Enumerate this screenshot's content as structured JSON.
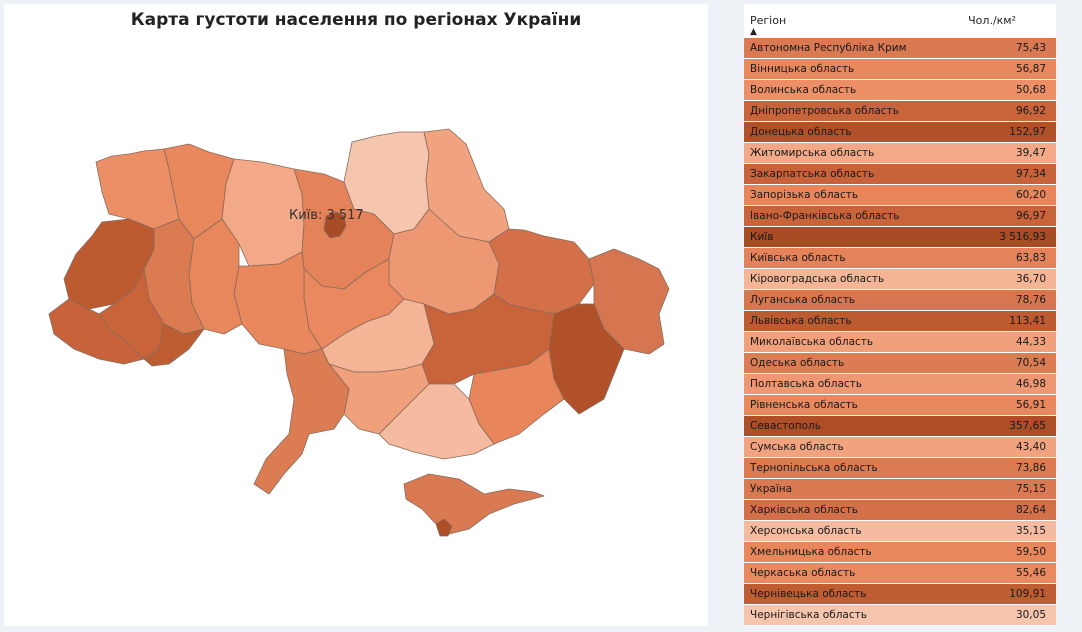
{
  "title": "Карта густоти населення по регіонах України",
  "map_label": "Київ: 3 517",
  "table": {
    "col_region": "Регіон",
    "col_value": "Чол./км²",
    "sort_glyph": "▲",
    "rows": [
      {
        "name": "Автономна Республіка Крим",
        "value": "75,43",
        "color": "#d97a52"
      },
      {
        "name": "Вінницька область",
        "value": "56,87",
        "color": "#e9875d"
      },
      {
        "name": "Волинська область",
        "value": "50,68",
        "color": "#ec8f66"
      },
      {
        "name": "Дніпропетровська область",
        "value": "96,92",
        "color": "#c8633a"
      },
      {
        "name": "Донецька область",
        "value": "152,97",
        "color": "#b05129"
      },
      {
        "name": "Житомирська область",
        "value": "39,47",
        "color": "#f3a987"
      },
      {
        "name": "Закарпатська область",
        "value": "97,34",
        "color": "#c7623a"
      },
      {
        "name": "Запорізька область",
        "value": "60,20",
        "color": "#e8855b"
      },
      {
        "name": "Івано-Франківська область",
        "value": "96,97",
        "color": "#c8633a"
      },
      {
        "name": "Київ",
        "value": "3 516,93",
        "color": "#a84c25"
      },
      {
        "name": "Київська область",
        "value": "63,83",
        "color": "#e4825a"
      },
      {
        "name": "Кіровоградська область",
        "value": "36,70",
        "color": "#f4b596"
      },
      {
        "name": "Луганська область",
        "value": "78,76",
        "color": "#d67650"
      },
      {
        "name": "Львівська область",
        "value": "113,41",
        "color": "#bc5a30"
      },
      {
        "name": "Миколаївська область",
        "value": "44,33",
        "color": "#f1a07c"
      },
      {
        "name": "Одеська область",
        "value": "70,54",
        "color": "#dc7c53"
      },
      {
        "name": "Полтавська область",
        "value": "46,98",
        "color": "#ee9873"
      },
      {
        "name": "Рівненська область",
        "value": "56,91",
        "color": "#e9875d"
      },
      {
        "name": "Севастополь",
        "value": "357,65",
        "color": "#ad4e27"
      },
      {
        "name": "Сумська область",
        "value": "43,40",
        "color": "#f1a380"
      },
      {
        "name": "Тернопільська область",
        "value": "73,86",
        "color": "#da7b52"
      },
      {
        "name": "Україна",
        "value": "75,15",
        "color": "#d97a52"
      },
      {
        "name": "Харківська область",
        "value": "82,64",
        "color": "#d3704a"
      },
      {
        "name": "Херсонська область",
        "value": "35,15",
        "color": "#f5bba0"
      },
      {
        "name": "Хмельницька область",
        "value": "59,50",
        "color": "#e8865c"
      },
      {
        "name": "Черкаська область",
        "value": "55,46",
        "color": "#ea895f"
      },
      {
        "name": "Чернівецька область",
        "value": "109,91",
        "color": "#be5c32"
      },
      {
        "name": "Чернігівська область",
        "value": "30,05",
        "color": "#f6c5ae"
      }
    ]
  }
}
